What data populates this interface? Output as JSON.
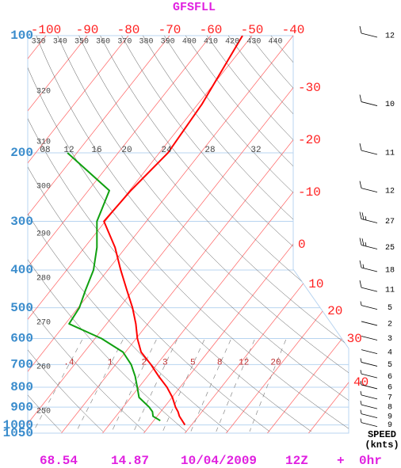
{
  "chart_data": {
    "type": "skew-t",
    "title": "GFSFLL",
    "pressure_axis": {
      "lim": [
        1050,
        100
      ],
      "log": true,
      "color": "#3a8ccc",
      "ticks": [
        100,
        200,
        300,
        400,
        500,
        600,
        700,
        800,
        900,
        1000,
        1050
      ]
    },
    "temperature_axis": {
      "color": "#ff2020",
      "ticks": [
        -100,
        -90,
        -80,
        -70,
        -60,
        -50,
        -40,
        -30,
        -20,
        -10,
        0,
        10,
        20,
        30,
        40
      ]
    },
    "dry_adiabat_labels": [
      250,
      260,
      270,
      280,
      290,
      300,
      310,
      320,
      330,
      340,
      350,
      360,
      370,
      380,
      390,
      400,
      410,
      420,
      430,
      440
    ],
    "mixing_ratio_labels": [
      {
        "value": 0.4,
        "label": ".4"
      },
      1,
      2,
      3,
      5,
      8,
      12,
      20
    ],
    "upper_labels": [
      "08",
      "12",
      "16",
      "20",
      "24",
      "28",
      "32"
    ],
    "series": [
      {
        "color": "#ff0000",
        "pressure": [
          100,
          150,
          200,
          250,
          300,
          350,
          400,
          450,
          500,
          550,
          600,
          650,
          700,
          750,
          800,
          850,
          900,
          925,
          950,
          1000
        ],
        "values": [
          -52.3,
          -49,
          -47.9,
          -49.7,
          -50.3,
          -42.6,
          -36.9,
          -31.6,
          -26.8,
          -22.9,
          -19.7,
          -16.2,
          -11.4,
          -7.3,
          -3.2,
          0.1,
          2.7,
          4.2,
          5.4,
          8.4
        ]
      },
      {
        "color": "#10a010",
        "pressure": [
          200,
          250,
          300,
          350,
          400,
          450,
          500,
          550,
          600,
          650,
          700,
          750,
          800,
          850,
          900,
          925,
          950,
          975
        ],
        "values": [
          -72.3,
          -54.9,
          -52,
          -47,
          -43.5,
          -41.6,
          -39.7,
          -39.1,
          -28.4,
          -20.6,
          -16.2,
          -13,
          -10.4,
          -8,
          -3.7,
          -2,
          -1,
          1.6
        ]
      }
    ],
    "wind": {
      "label": "SPEED",
      "unit": "(knts)",
      "pressure": [
        100,
        150,
        200,
        250,
        300,
        350,
        400,
        450,
        500,
        550,
        600,
        650,
        700,
        750,
        800,
        850,
        900,
        950,
        1000
      ],
      "speed": [
        12,
        10,
        11,
        12,
        27,
        25,
        18,
        11,
        5,
        2,
        3,
        4,
        5,
        6,
        6,
        7,
        8,
        9,
        9
      ]
    },
    "footer": [
      "68.54",
      "14.87",
      "10/04/2009",
      "12Z",
      "+",
      "0hr"
    ]
  }
}
